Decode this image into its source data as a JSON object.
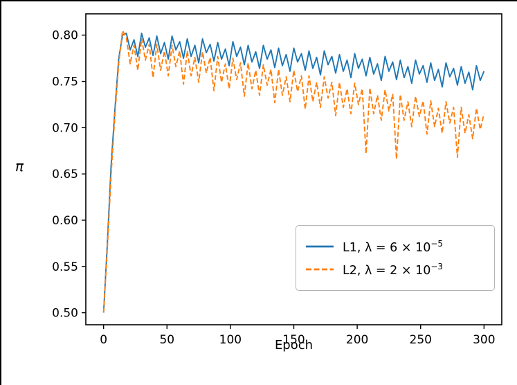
{
  "chart_data": {
    "type": "line",
    "title": "",
    "xlabel": "Epoch",
    "ylabel": "π",
    "grid": false,
    "legend_position": "lower right",
    "xlim": [
      -14,
      314
    ],
    "ylim": [
      0.487,
      0.823
    ],
    "x_ticks": [
      0,
      50,
      100,
      150,
      200,
      250,
      300
    ],
    "x_tick_labels": [
      "0",
      "50",
      "100",
      "150",
      "200",
      "250",
      "300"
    ],
    "y_ticks": [
      0.5,
      0.55,
      0.6,
      0.65,
      0.7,
      0.75,
      0.8
    ],
    "y_tick_labels": [
      "0.50",
      "0.55",
      "0.60",
      "0.65",
      "0.70",
      "0.75",
      "0.80"
    ],
    "x_start": 0,
    "x_step": 3,
    "series": [
      {
        "name": "L1, λ = 6 × 10^−5",
        "label_main": "L1, λ = 6 × 10",
        "label_sup": "−5",
        "color": "#1f77b4",
        "style": "solid",
        "values": [
          0.5,
          0.575,
          0.66,
          0.72,
          0.775,
          0.8,
          0.802,
          0.784,
          0.795,
          0.777,
          0.802,
          0.787,
          0.797,
          0.778,
          0.799,
          0.78,
          0.792,
          0.774,
          0.799,
          0.784,
          0.793,
          0.775,
          0.796,
          0.777,
          0.789,
          0.77,
          0.796,
          0.781,
          0.79,
          0.772,
          0.792,
          0.774,
          0.785,
          0.767,
          0.793,
          0.777,
          0.787,
          0.768,
          0.789,
          0.771,
          0.782,
          0.764,
          0.789,
          0.774,
          0.784,
          0.765,
          0.786,
          0.767,
          0.779,
          0.761,
          0.786,
          0.771,
          0.78,
          0.762,
          0.783,
          0.764,
          0.776,
          0.757,
          0.783,
          0.768,
          0.777,
          0.759,
          0.779,
          0.761,
          0.773,
          0.754,
          0.78,
          0.764,
          0.774,
          0.756,
          0.776,
          0.758,
          0.769,
          0.751,
          0.777,
          0.761,
          0.771,
          0.752,
          0.773,
          0.754,
          0.766,
          0.748,
          0.773,
          0.758,
          0.767,
          0.749,
          0.77,
          0.751,
          0.763,
          0.744,
          0.77,
          0.755,
          0.764,
          0.746,
          0.766,
          0.748,
          0.76,
          0.741,
          0.767,
          0.751,
          0.761
        ]
      },
      {
        "name": "L2, λ = 2 × 10^−3",
        "label_main": "L2, λ = 2 × 10",
        "label_sup": "−3",
        "color": "#ff7f0e",
        "style": "dashed",
        "values": [
          0.5,
          0.57,
          0.65,
          0.715,
          0.77,
          0.805,
          0.797,
          0.769,
          0.789,
          0.762,
          0.796,
          0.773,
          0.79,
          0.754,
          0.79,
          0.762,
          0.783,
          0.756,
          0.789,
          0.766,
          0.783,
          0.747,
          0.783,
          0.756,
          0.776,
          0.749,
          0.782,
          0.759,
          0.776,
          0.74,
          0.777,
          0.749,
          0.769,
          0.742,
          0.775,
          0.752,
          0.77,
          0.734,
          0.77,
          0.742,
          0.762,
          0.735,
          0.768,
          0.746,
          0.763,
          0.727,
          0.763,
          0.735,
          0.755,
          0.728,
          0.762,
          0.739,
          0.756,
          0.72,
          0.756,
          0.728,
          0.749,
          0.722,
          0.755,
          0.732,
          0.749,
          0.713,
          0.749,
          0.722,
          0.742,
          0.715,
          0.748,
          0.725,
          0.742,
          0.672,
          0.743,
          0.715,
          0.735,
          0.708,
          0.741,
          0.718,
          0.736,
          0.666,
          0.736,
          0.708,
          0.728,
          0.701,
          0.734,
          0.712,
          0.729,
          0.693,
          0.729,
          0.701,
          0.721,
          0.694,
          0.728,
          0.705,
          0.722,
          0.668,
          0.722,
          0.694,
          0.714,
          0.688,
          0.721,
          0.698,
          0.715
        ]
      }
    ]
  }
}
